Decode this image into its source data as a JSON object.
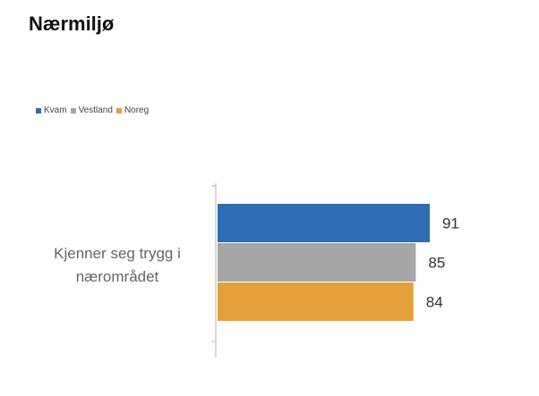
{
  "page": {
    "heading": "Nærmiljø"
  },
  "chart_data": {
    "type": "bar",
    "orientation": "horizontal",
    "title": "",
    "categories": [
      "Kjenner seg trygg i nærområdet"
    ],
    "category_lines": [
      "Kjenner seg trygg i",
      "nærområdet"
    ],
    "series": [
      {
        "name": "Kvam",
        "values": [
          91
        ],
        "color": "#2e6db4"
      },
      {
        "name": "Vestland",
        "values": [
          85
        ],
        "color": "#a6a6a6"
      },
      {
        "name": "Noreg",
        "values": [
          84
        ],
        "color": "#e3a03a"
      }
    ],
    "xlim": [
      0,
      91
    ],
    "grid": false,
    "legend_position": "top-left",
    "xlabel": "",
    "ylabel": ""
  }
}
